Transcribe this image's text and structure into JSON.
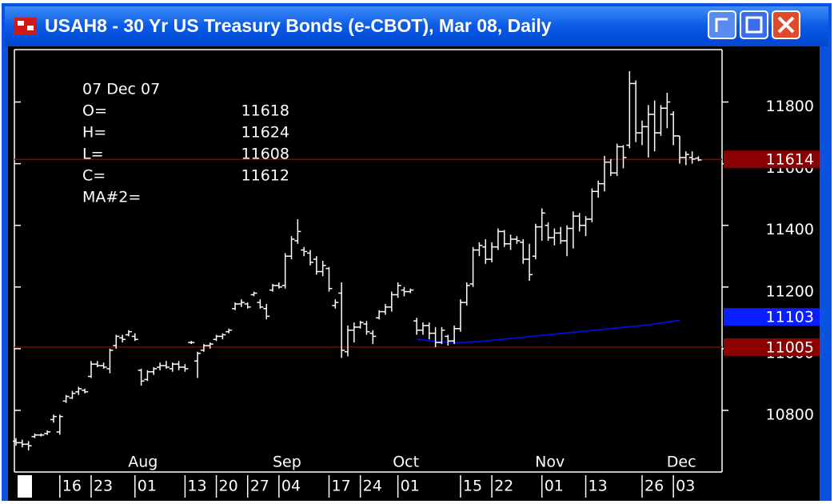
{
  "chart_data": {
    "type": "ohlc",
    "title": "USAH8 - 30 Yr US Treasury Bonds (e-CBOT), Mar 08, Daily",
    "categories": [
      null,
      null,
      null,
      null,
      null,
      null,
      null,
      "16",
      null,
      null,
      null,
      null,
      "23",
      null,
      null,
      null,
      null,
      null,
      null,
      "01",
      null,
      null,
      null,
      null,
      null,
      null,
      null,
      "13",
      null,
      null,
      null,
      null,
      "20",
      null,
      null,
      null,
      null,
      "27",
      null,
      null,
      null,
      null,
      "04",
      null,
      null,
      null,
      null,
      null,
      null,
      null,
      "17",
      null,
      null,
      null,
      null,
      "24",
      null,
      null,
      null,
      null,
      null,
      "01",
      null,
      null,
      null,
      null,
      null,
      null,
      null,
      null,
      null,
      "15",
      null,
      null,
      null,
      null,
      "22",
      null,
      null,
      null,
      null,
      null,
      null,
      null,
      "01",
      null,
      null,
      null,
      null,
      null,
      null,
      "13",
      null,
      null,
      null,
      null,
      null,
      null,
      null,
      null,
      "26",
      null,
      null,
      null,
      null,
      "03",
      null,
      null,
      null,
      null
    ],
    "months": [
      null,
      null,
      null,
      null,
      null,
      null,
      null,
      null,
      null,
      null,
      null,
      null,
      null,
      null,
      null,
      null,
      null,
      null,
      null,
      "Aug",
      null,
      null,
      null,
      null,
      null,
      null,
      null,
      null,
      null,
      null,
      null,
      null,
      null,
      null,
      null,
      null,
      null,
      null,
      null,
      null,
      null,
      null,
      "Sep",
      null,
      null,
      null,
      null,
      null,
      null,
      null,
      null,
      null,
      null,
      null,
      null,
      null,
      null,
      null,
      null,
      null,
      null,
      "Oct",
      null,
      null,
      null,
      null,
      null,
      null,
      null,
      null,
      null,
      null,
      null,
      null,
      null,
      null,
      null,
      null,
      null,
      null,
      null,
      null,
      null,
      null,
      "Nov",
      null,
      null,
      null,
      null,
      null,
      null,
      null,
      null,
      null,
      null,
      null,
      null,
      null,
      null,
      null,
      null,
      null,
      null,
      null,
      null,
      "Dec",
      null,
      null,
      null,
      null
    ],
    "open": [
      10700,
      10695,
      10690,
      10715,
      10720,
      10725,
      10770,
      10730,
      10830,
      10840,
      10860,
      10865,
      10910,
      10950,
      10945,
      10935,
      11010,
      11035,
      11045,
      11040,
      10930,
      10900,
      10925,
      10940,
      10945,
      10935,
      10950,
      10940,
      11020,
      10960,
      10995,
      11010,
      11030,
      11040,
      11055,
      11130,
      11145,
      11145,
      11175,
      11150,
      11130,
      11190,
      11205,
      11205,
      11300,
      11350,
      11320,
      11310,
      11290,
      11250,
      11260,
      11140,
      11180,
      10990,
      11060,
      11070,
      11080,
      11050,
      11100,
      11120,
      11135,
      11175,
      11190,
      11185,
      11090,
      11060,
      11075,
      11050,
      11020,
      11040,
      11025,
      11065,
      11150,
      11210,
      11320,
      11330,
      11290,
      11330,
      11380,
      11340,
      11355,
      11345,
      11290,
      11300,
      11395,
      11400,
      11360,
      11375,
      11350,
      11390,
      11430,
      11400,
      11420,
      11510,
      11535,
      11605,
      11570,
      11655,
      11660,
      11860,
      11700,
      11720,
      11760,
      11700,
      11780,
      11760,
      11690,
      11620,
      11620,
      11618
    ],
    "high": [
      10710,
      10705,
      10700,
      10725,
      10725,
      10735,
      10786,
      10786,
      10850,
      10863,
      10876,
      10870,
      10960,
      10960,
      10955,
      11000,
      11045,
      11045,
      11060,
      11050,
      10935,
      10930,
      10940,
      10955,
      10960,
      10955,
      10960,
      10950,
      11025,
      10990,
      11015,
      11020,
      11045,
      11050,
      11065,
      11150,
      11160,
      11150,
      11185,
      11160,
      11145,
      11210,
      11215,
      11310,
      11365,
      11420,
      11330,
      11320,
      11300,
      11285,
      11265,
      11160,
      11215,
      11075,
      11085,
      11090,
      11090,
      11060,
      11125,
      11145,
      11185,
      11215,
      11200,
      11195,
      11100,
      11085,
      11085,
      11070,
      11070,
      11045,
      11075,
      11160,
      11215,
      11330,
      11345,
      11355,
      11345,
      11390,
      11385,
      11370,
      11365,
      11355,
      11340,
      11405,
      11455,
      11410,
      11390,
      11395,
      11400,
      11445,
      11440,
      11430,
      11520,
      11545,
      11625,
      11615,
      11665,
      11660,
      11900,
      11870,
      11740,
      11790,
      11805,
      11790,
      11830,
      11770,
      11690,
      11640,
      11640,
      11624
    ],
    "low": [
      10685,
      10680,
      10670,
      10710,
      10715,
      10720,
      10760,
      10721,
      10824,
      10837,
      10850,
      10855,
      10905,
      10940,
      10935,
      10920,
      11000,
      11020,
      11040,
      11025,
      10880,
      10895,
      10915,
      10930,
      10935,
      10925,
      10930,
      10925,
      11015,
      10905,
      10990,
      11000,
      11025,
      11030,
      11050,
      11125,
      11135,
      11130,
      11170,
      11130,
      11095,
      11185,
      11195,
      11195,
      11290,
      11340,
      11300,
      11270,
      11240,
      11235,
      11185,
      11130,
      10970,
      10975,
      11020,
      11065,
      11045,
      11015,
      11095,
      11110,
      11120,
      11165,
      11170,
      11180,
      11045,
      11045,
      11030,
      11005,
      11015,
      11010,
      11015,
      11055,
      11140,
      11200,
      11300,
      11275,
      11280,
      11320,
      11330,
      11320,
      11340,
      11275,
      11220,
      11290,
      11350,
      11350,
      11335,
      11340,
      11300,
      11325,
      11380,
      11365,
      11410,
      11490,
      11510,
      11560,
      11560,
      11585,
      11650,
      11670,
      11660,
      11620,
      11640,
      11690,
      11715,
      11660,
      11600,
      11595,
      11600,
      11608
    ],
    "close": [
      10695,
      10690,
      10685,
      10720,
      10720,
      10730,
      10780,
      10780,
      10845,
      10855,
      10870,
      10860,
      10950,
      10945,
      10940,
      10995,
      11040,
      11030,
      11055,
      11030,
      10895,
      10925,
      10935,
      10945,
      10940,
      10950,
      10940,
      10935,
      11020,
      10985,
      11010,
      11015,
      11040,
      11045,
      11060,
      11145,
      11150,
      11135,
      11180,
      11135,
      11105,
      11205,
      11200,
      11300,
      11355,
      11380,
      11315,
      11280,
      11250,
      11270,
      11195,
      11150,
      10995,
      11060,
      11070,
      11085,
      11055,
      11040,
      11120,
      11135,
      11175,
      11205,
      11185,
      11190,
      11060,
      11075,
      11050,
      11020,
      11060,
      11025,
      11065,
      11150,
      11205,
      11320,
      11335,
      11290,
      11330,
      11380,
      11340,
      11355,
      11350,
      11290,
      11240,
      11395,
      11440,
      11360,
      11375,
      11350,
      11390,
      11430,
      11400,
      11420,
      11510,
      11535,
      11605,
      11570,
      11655,
      11620,
      11860,
      11700,
      11720,
      11760,
      11700,
      11780,
      11800,
      11690,
      11620,
      11630,
      11615,
      11612
    ],
    "bar_color": "#ffffff",
    "ma": {
      "color": "#0010c8",
      "values": [
        null,
        null,
        null,
        null,
        null,
        null,
        null,
        null,
        null,
        null,
        null,
        null,
        null,
        null,
        null,
        null,
        null,
        null,
        null,
        null,
        null,
        null,
        null,
        null,
        null,
        null,
        null,
        null,
        null,
        null,
        null,
        null,
        null,
        null,
        null,
        null,
        null,
        null,
        null,
        null,
        null,
        null,
        null,
        null,
        null,
        null,
        null,
        null,
        null,
        null,
        null,
        null,
        null,
        null,
        null,
        null,
        null,
        null,
        null,
        null,
        null,
        null,
        null,
        null,
        11030,
        11028,
        11026,
        11024,
        11022,
        11021,
        11020,
        11020,
        11021,
        11022,
        11023,
        11025,
        11027,
        11029,
        11031,
        11033,
        11035,
        11037,
        11039,
        11041,
        11043,
        11045,
        11047,
        11049,
        11051,
        11053,
        11055,
        11057,
        11059,
        11061,
        11063,
        11065,
        11067,
        11069,
        11071,
        11073,
        11075,
        11077,
        11080,
        11083,
        11086,
        11089,
        11092,
        null,
        null,
        null
      ]
    },
    "ylim": [
      10600,
      11970
    ],
    "yticks": [
      10800,
      11000,
      11200,
      11400,
      11600,
      11800
    ],
    "flags": [
      {
        "value": 11614,
        "color": "#8b0000",
        "line": true
      },
      {
        "value": 11103,
        "color": "#0a1eff",
        "line": false
      },
      {
        "value": 11005,
        "color": "#8b0000",
        "line": true
      }
    ],
    "info": {
      "date": "07 Dec 07",
      "rows": [
        {
          "label": "O=",
          "value": 11618
        },
        {
          "label": "H=",
          "value": 11624
        },
        {
          "label": "L=",
          "value": 11608
        },
        {
          "label": "C=",
          "value": 11612
        }
      ],
      "ma_label": "MA#2="
    }
  }
}
